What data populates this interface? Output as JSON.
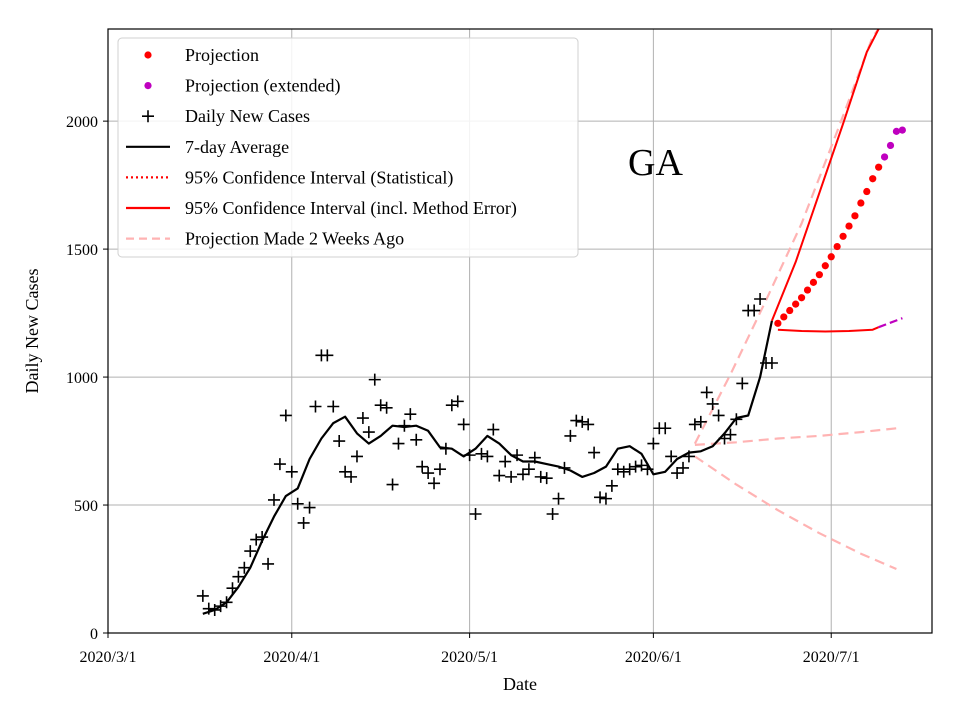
{
  "chart_data": {
    "type": "line",
    "annotation": "GA",
    "xlabel": "Date",
    "ylabel": "Daily New Cases",
    "x_ticks": [
      "2020/3/1",
      "2020/4/1",
      "2020/5/1",
      "2020/6/1",
      "2020/7/1"
    ],
    "y_ticks": [
      "0",
      "500",
      "1000",
      "1500",
      "2000"
    ],
    "xlim": [
      "2020-03-01",
      "2020-07-18"
    ],
    "ylim": [
      0,
      2360
    ],
    "grid": true,
    "legend_position": "top-left",
    "legend": [
      {
        "label": "Projection",
        "style": "red-dot"
      },
      {
        "label": "Projection (extended)",
        "style": "magenta-dot"
      },
      {
        "label": "Daily New Cases",
        "style": "black-plus"
      },
      {
        "label": "7-day Average",
        "style": "black-line"
      },
      {
        "label": "95% Confidence Interval (Statistical)",
        "style": "red-dotted"
      },
      {
        "label": "95% Confidence Interval (incl. Method Error)",
        "style": "red-line"
      },
      {
        "label": "Projection Made 2 Weeks Ago",
        "style": "pink-dashed"
      }
    ],
    "colors": {
      "projection": "#ff0000",
      "projection_extended": "#bf00bf",
      "daily": "#000000",
      "average": "#000000",
      "ci": "#ff0000",
      "old_projection": "#ffb3b3",
      "grid": "#b0b0b0"
    },
    "series": [
      {
        "name": "Daily New Cases",
        "kind": "markers",
        "x": [
          "2020-03-17",
          "2020-03-18",
          "2020-03-19",
          "2020-03-20",
          "2020-03-21",
          "2020-03-22",
          "2020-03-23",
          "2020-03-24",
          "2020-03-25",
          "2020-03-26",
          "2020-03-27",
          "2020-03-28",
          "2020-03-29",
          "2020-03-30",
          "2020-03-31",
          "2020-04-01",
          "2020-04-02",
          "2020-04-03",
          "2020-04-04",
          "2020-04-05",
          "2020-04-06",
          "2020-04-07",
          "2020-04-08",
          "2020-04-09",
          "2020-04-10",
          "2020-04-11",
          "2020-04-12",
          "2020-04-13",
          "2020-04-14",
          "2020-04-15",
          "2020-04-16",
          "2020-04-17",
          "2020-04-18",
          "2020-04-19",
          "2020-04-20",
          "2020-04-21",
          "2020-04-22",
          "2020-04-23",
          "2020-04-24",
          "2020-04-25",
          "2020-04-26",
          "2020-04-27",
          "2020-04-28",
          "2020-04-29",
          "2020-04-30",
          "2020-05-01",
          "2020-05-02",
          "2020-05-03",
          "2020-05-04",
          "2020-05-05",
          "2020-05-06",
          "2020-05-07",
          "2020-05-08",
          "2020-05-09",
          "2020-05-10",
          "2020-05-11",
          "2020-05-12",
          "2020-05-13",
          "2020-05-14",
          "2020-05-15",
          "2020-05-16",
          "2020-05-17",
          "2020-05-18",
          "2020-05-19",
          "2020-05-20",
          "2020-05-21",
          "2020-05-22",
          "2020-05-23",
          "2020-05-24",
          "2020-05-25",
          "2020-05-26",
          "2020-05-27",
          "2020-05-28",
          "2020-05-29",
          "2020-05-30",
          "2020-05-31",
          "2020-06-01",
          "2020-06-02",
          "2020-06-03",
          "2020-06-04",
          "2020-06-05",
          "2020-06-06",
          "2020-06-07",
          "2020-06-08",
          "2020-06-09",
          "2020-06-10",
          "2020-06-11",
          "2020-06-12",
          "2020-06-13",
          "2020-06-14",
          "2020-06-15",
          "2020-06-16",
          "2020-06-17",
          "2020-06-18",
          "2020-06-19",
          "2020-06-20",
          "2020-06-21"
        ],
        "y": [
          145,
          95,
          90,
          105,
          120,
          175,
          220,
          255,
          320,
          365,
          375,
          270,
          520,
          660,
          850,
          630,
          505,
          430,
          490,
          885,
          1085,
          1085,
          885,
          750,
          630,
          610,
          690,
          840,
          785,
          990,
          890,
          880,
          580,
          740,
          810,
          855,
          755,
          650,
          625,
          585,
          640,
          720,
          890,
          905,
          815,
          695,
          465,
          700,
          690,
          795,
          615,
          670,
          610,
          695,
          620,
          640,
          685,
          610,
          605,
          465,
          525,
          645,
          770,
          830,
          825,
          815,
          705,
          530,
          525,
          575,
          640,
          630,
          640,
          650,
          655,
          640,
          740,
          800,
          800,
          690,
          625,
          645,
          690,
          815,
          825,
          940,
          895,
          850,
          760,
          775,
          835,
          975,
          1260,
          1260,
          1305,
          1055,
          1055
        ]
      },
      {
        "name": "7-day Average",
        "kind": "line",
        "x": [
          "2020-03-17",
          "2020-03-19",
          "2020-03-21",
          "2020-03-23",
          "2020-03-25",
          "2020-03-27",
          "2020-03-29",
          "2020-03-31",
          "2020-04-02",
          "2020-04-04",
          "2020-04-06",
          "2020-04-08",
          "2020-04-10",
          "2020-04-12",
          "2020-04-14",
          "2020-04-16",
          "2020-04-18",
          "2020-04-20",
          "2020-04-22",
          "2020-04-24",
          "2020-04-26",
          "2020-04-28",
          "2020-04-30",
          "2020-05-02",
          "2020-05-04",
          "2020-05-06",
          "2020-05-08",
          "2020-05-10",
          "2020-05-12",
          "2020-05-14",
          "2020-05-16",
          "2020-05-18",
          "2020-05-20",
          "2020-05-22",
          "2020-05-24",
          "2020-05-26",
          "2020-05-28",
          "2020-05-30",
          "2020-06-01",
          "2020-06-03",
          "2020-06-05",
          "2020-06-07",
          "2020-06-09",
          "2020-06-11",
          "2020-06-13",
          "2020-06-15",
          "2020-06-17",
          "2020-06-19",
          "2020-06-21"
        ],
        "y": [
          75,
          90,
          120,
          180,
          255,
          360,
          455,
          535,
          565,
          680,
          760,
          820,
          845,
          780,
          740,
          770,
          810,
          805,
          810,
          790,
          725,
          720,
          690,
          720,
          770,
          740,
          695,
          670,
          670,
          660,
          650,
          635,
          610,
          625,
          650,
          720,
          730,
          700,
          620,
          630,
          680,
          705,
          710,
          730,
          780,
          840,
          850,
          1000,
          1220
        ]
      },
      {
        "name": "Projection",
        "kind": "dots",
        "x": [
          "2020-06-22",
          "2020-06-23",
          "2020-06-24",
          "2020-06-25",
          "2020-06-26",
          "2020-06-27",
          "2020-06-28",
          "2020-06-29",
          "2020-06-30",
          "2020-07-01",
          "2020-07-02",
          "2020-07-03",
          "2020-07-04",
          "2020-07-05",
          "2020-07-06",
          "2020-07-07",
          "2020-07-08",
          "2020-07-09"
        ],
        "y": [
          1210,
          1235,
          1260,
          1285,
          1310,
          1340,
          1370,
          1400,
          1435,
          1470,
          1510,
          1550,
          1590,
          1630,
          1680,
          1725,
          1775,
          1820
        ]
      },
      {
        "name": "Projection (extended)",
        "kind": "dots",
        "x": [
          "2020-07-10",
          "2020-07-11",
          "2020-07-12",
          "2020-07-13"
        ],
        "y": [
          1860,
          1905,
          1960,
          1965
        ]
      },
      {
        "name": "95% Confidence Interval (incl. Method Error) upper",
        "kind": "line",
        "x": [
          "2020-06-21",
          "2020-06-25",
          "2020-06-29",
          "2020-07-03",
          "2020-07-07",
          "2020-07-09"
        ],
        "y": [
          1220,
          1450,
          1720,
          1990,
          2270,
          2360
        ]
      },
      {
        "name": "95% Confidence Interval (incl. Method Error) lower",
        "kind": "line",
        "x": [
          "2020-06-22",
          "2020-06-26",
          "2020-06-30",
          "2020-07-04",
          "2020-07-08",
          "2020-07-09"
        ],
        "y": [
          1185,
          1180,
          1178,
          1180,
          1185,
          1195
        ]
      },
      {
        "name": "Lower extended",
        "kind": "line",
        "x": [
          "2020-07-09",
          "2020-07-13"
        ],
        "y": [
          1195,
          1230
        ]
      },
      {
        "name": "Projection Made 2 Weeks Ago (upper)",
        "kind": "line",
        "x": [
          "2020-06-08",
          "2020-06-14",
          "2020-06-20",
          "2020-06-26",
          "2020-07-02",
          "2020-07-08",
          "2020-07-09"
        ],
        "y": [
          740,
          1010,
          1300,
          1600,
          1960,
          2330,
          2360
        ]
      },
      {
        "name": "Projection Made 2 Weeks Ago (middle)",
        "kind": "line",
        "x": [
          "2020-06-08",
          "2020-06-15",
          "2020-06-22",
          "2020-06-29",
          "2020-07-06",
          "2020-07-12"
        ],
        "y": [
          735,
          745,
          760,
          770,
          785,
          800
        ]
      },
      {
        "name": "Projection Made 2 Weeks Ago (lower)",
        "kind": "line",
        "x": [
          "2020-06-08",
          "2020-06-15",
          "2020-06-22",
          "2020-06-29",
          "2020-07-06",
          "2020-07-12"
        ],
        "y": [
          690,
          580,
          480,
          390,
          310,
          250
        ]
      }
    ]
  }
}
